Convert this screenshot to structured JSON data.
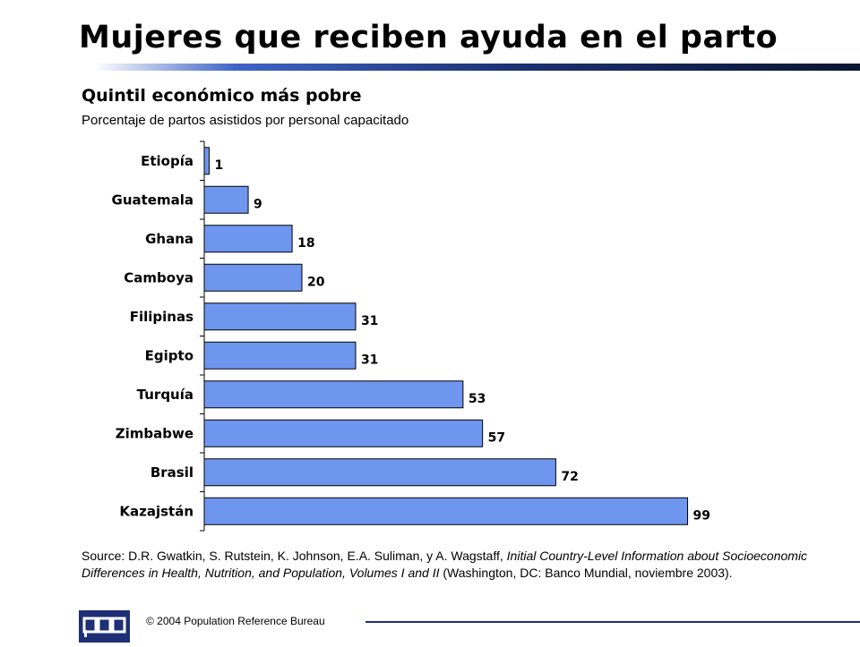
{
  "slide": {
    "title": "Mujeres que reciben ayuda en el parto",
    "subtitle": "Quintil económico más pobre",
    "description": "Porcentaje de partos asistidos por personal capacitado"
  },
  "chart_data": {
    "type": "bar",
    "orientation": "horizontal",
    "categories": [
      "Etiopía",
      "Guatemala",
      "Ghana",
      "Camboya",
      "Filipinas",
      "Egipto",
      "Turquía",
      "Zimbabwe",
      "Brasil",
      "Kazajstán"
    ],
    "values": [
      1,
      9,
      18,
      20,
      31,
      31,
      53,
      57,
      72,
      99
    ],
    "xlim": [
      0,
      100
    ],
    "bar_color": "#6f96ef",
    "grid": false,
    "legend": false,
    "data_labels": true
  },
  "source": {
    "prefix": "Source: D.R. Gwatkin, S. Rutstein, K. Johnson, E.A. Suliman, y A. Wagstaff, ",
    "italic": "Initial Country-Level Information about Socioeconomic Differences in Health, Nutrition, and Population, Volumes I and II",
    "suffix": " (Washington, DC: Banco Mundial, noviembre 2003)."
  },
  "footer": {
    "logo_text": "PRB",
    "copyright": "© 2004  Population Reference Bureau"
  },
  "colors": {
    "accent": "#1e2f75",
    "bar": "#6f96ef"
  }
}
